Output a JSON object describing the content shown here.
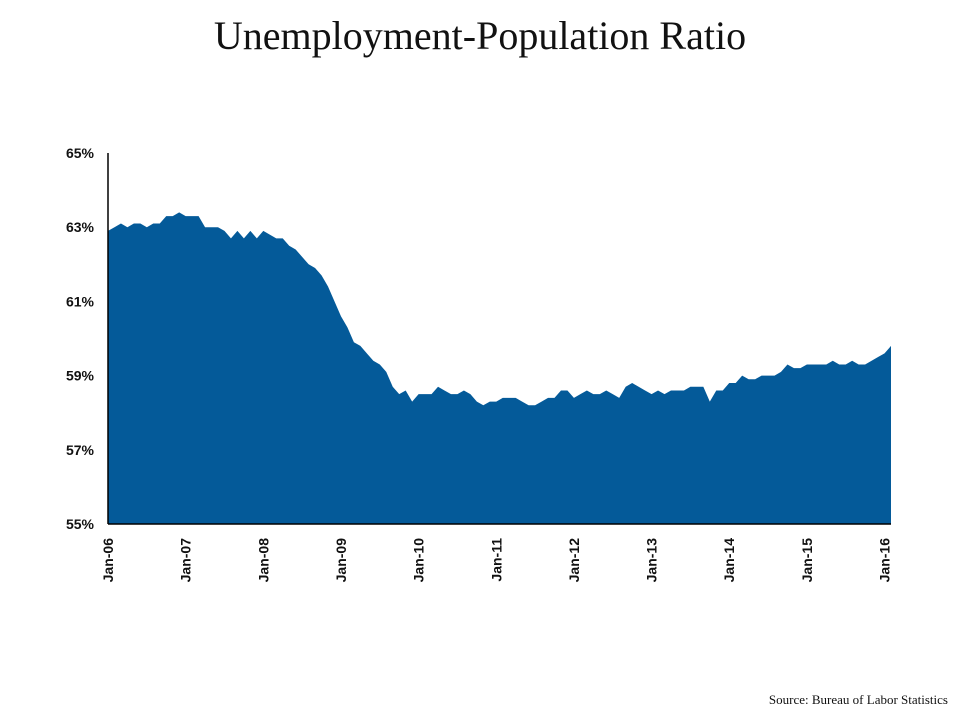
{
  "header": {
    "title": "Unemployment-Population Ratio"
  },
  "footer": {
    "source": "Source: Bureau of Labor Statistics"
  },
  "colors": {
    "area_fill": "#045A99",
    "axis": "#000000"
  },
  "chart_data": {
    "type": "area",
    "title": "Unemployment-Population Ratio",
    "xlabel": "",
    "ylabel": "",
    "ylim": [
      55,
      65
    ],
    "yticks": [
      "55%",
      "57%",
      "59%",
      "61%",
      "63%",
      "65%"
    ],
    "ytick_values": [
      55,
      57,
      59,
      61,
      63,
      65
    ],
    "xticks": [
      "Jan-06",
      "Jan-07",
      "Jan-08",
      "Jan-09",
      "Jan-10",
      "Jan-11",
      "Jan-12",
      "Jan-13",
      "Jan-14",
      "Jan-15",
      "Jan-16"
    ],
    "x_start": "Jan-06",
    "x_end": "Jan-16",
    "frequency": "monthly",
    "grid": false,
    "series": [
      {
        "values": [
          62.9,
          63.0,
          63.1,
          63.0,
          63.1,
          63.1,
          63.0,
          63.1,
          63.1,
          63.3,
          63.3,
          63.4,
          63.3,
          63.3,
          63.3,
          63.0,
          63.0,
          63.0,
          62.9,
          62.7,
          62.9,
          62.7,
          62.9,
          62.7,
          62.9,
          62.8,
          62.7,
          62.7,
          62.5,
          62.4,
          62.2,
          62.0,
          61.9,
          61.7,
          61.4,
          61.0,
          60.6,
          60.3,
          59.9,
          59.8,
          59.6,
          59.4,
          59.3,
          59.1,
          58.7,
          58.5,
          58.6,
          58.3,
          58.5,
          58.5,
          58.5,
          58.7,
          58.6,
          58.5,
          58.5,
          58.6,
          58.5,
          58.3,
          58.2,
          58.3,
          58.3,
          58.4,
          58.4,
          58.4,
          58.3,
          58.2,
          58.2,
          58.3,
          58.4,
          58.4,
          58.6,
          58.6,
          58.4,
          58.5,
          58.6,
          58.5,
          58.5,
          58.6,
          58.5,
          58.4,
          58.7,
          58.8,
          58.7,
          58.6,
          58.5,
          58.6,
          58.5,
          58.6,
          58.6,
          58.6,
          58.7,
          58.7,
          58.7,
          58.3,
          58.6,
          58.6,
          58.8,
          58.8,
          59.0,
          58.9,
          58.9,
          59.0,
          59.0,
          59.0,
          59.1,
          59.3,
          59.2,
          59.2,
          59.3,
          59.3,
          59.3,
          59.3,
          59.4,
          59.3,
          59.3,
          59.4,
          59.3,
          59.3,
          59.4,
          59.5,
          59.6,
          59.8
        ]
      }
    ]
  }
}
